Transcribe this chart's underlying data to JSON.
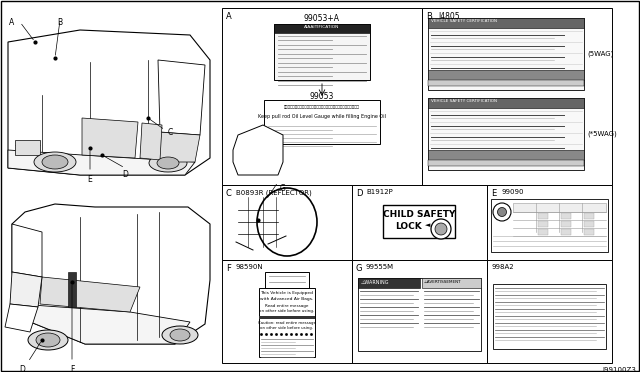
{
  "bg_color": "#ffffff",
  "diagram_code": "J99100Z3",
  "col0": 222,
  "col1": 422,
  "col5": 612,
  "col3": 352,
  "col4": 487,
  "row0": 8,
  "row1": 185,
  "row2": 260,
  "row3": 363,
  "sections": {
    "A": {
      "label": "A",
      "part": "99053+A",
      "sub_part": "99053"
    },
    "B": {
      "label": "B",
      "part": "I4805",
      "swag1": "(5WAG)",
      "swag2": "(*5WAG)"
    },
    "C": {
      "label": "C",
      "part": "B0893R (REFLECTOR)"
    },
    "D": {
      "label": "D",
      "part": "B1912P"
    },
    "E": {
      "label": "E",
      "part": "99090"
    },
    "F": {
      "label": "F",
      "part": "98590N"
    },
    "G": {
      "label": "G",
      "part": "99555M"
    },
    "H": {
      "label": "",
      "part": "998A2"
    }
  }
}
